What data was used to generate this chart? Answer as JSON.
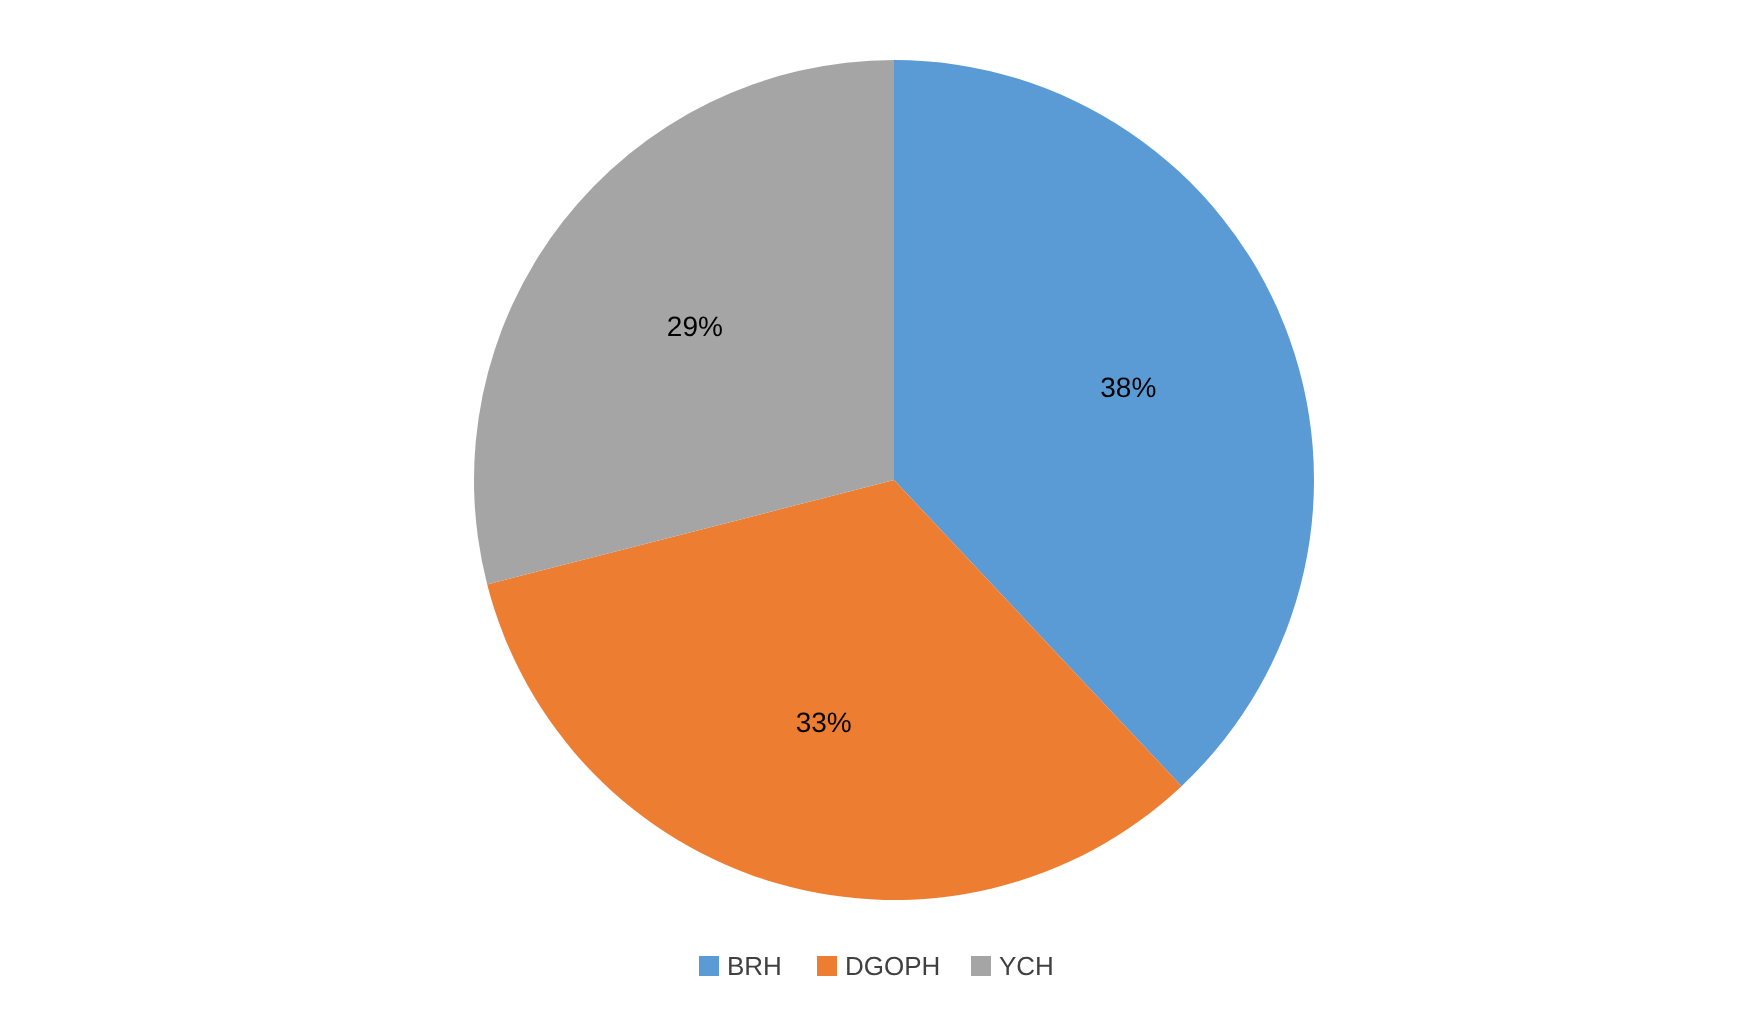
{
  "chart_data": {
    "type": "pie",
    "categories": [
      "BRH",
      "DGOPH",
      "YCH"
    ],
    "values": [
      38,
      33,
      29
    ],
    "colors": [
      "#5b9bd5",
      "#ed7d31",
      "#a5a5a5"
    ],
    "value_labels": [
      "38%",
      "33%",
      "29%"
    ],
    "legend": "bottom"
  }
}
